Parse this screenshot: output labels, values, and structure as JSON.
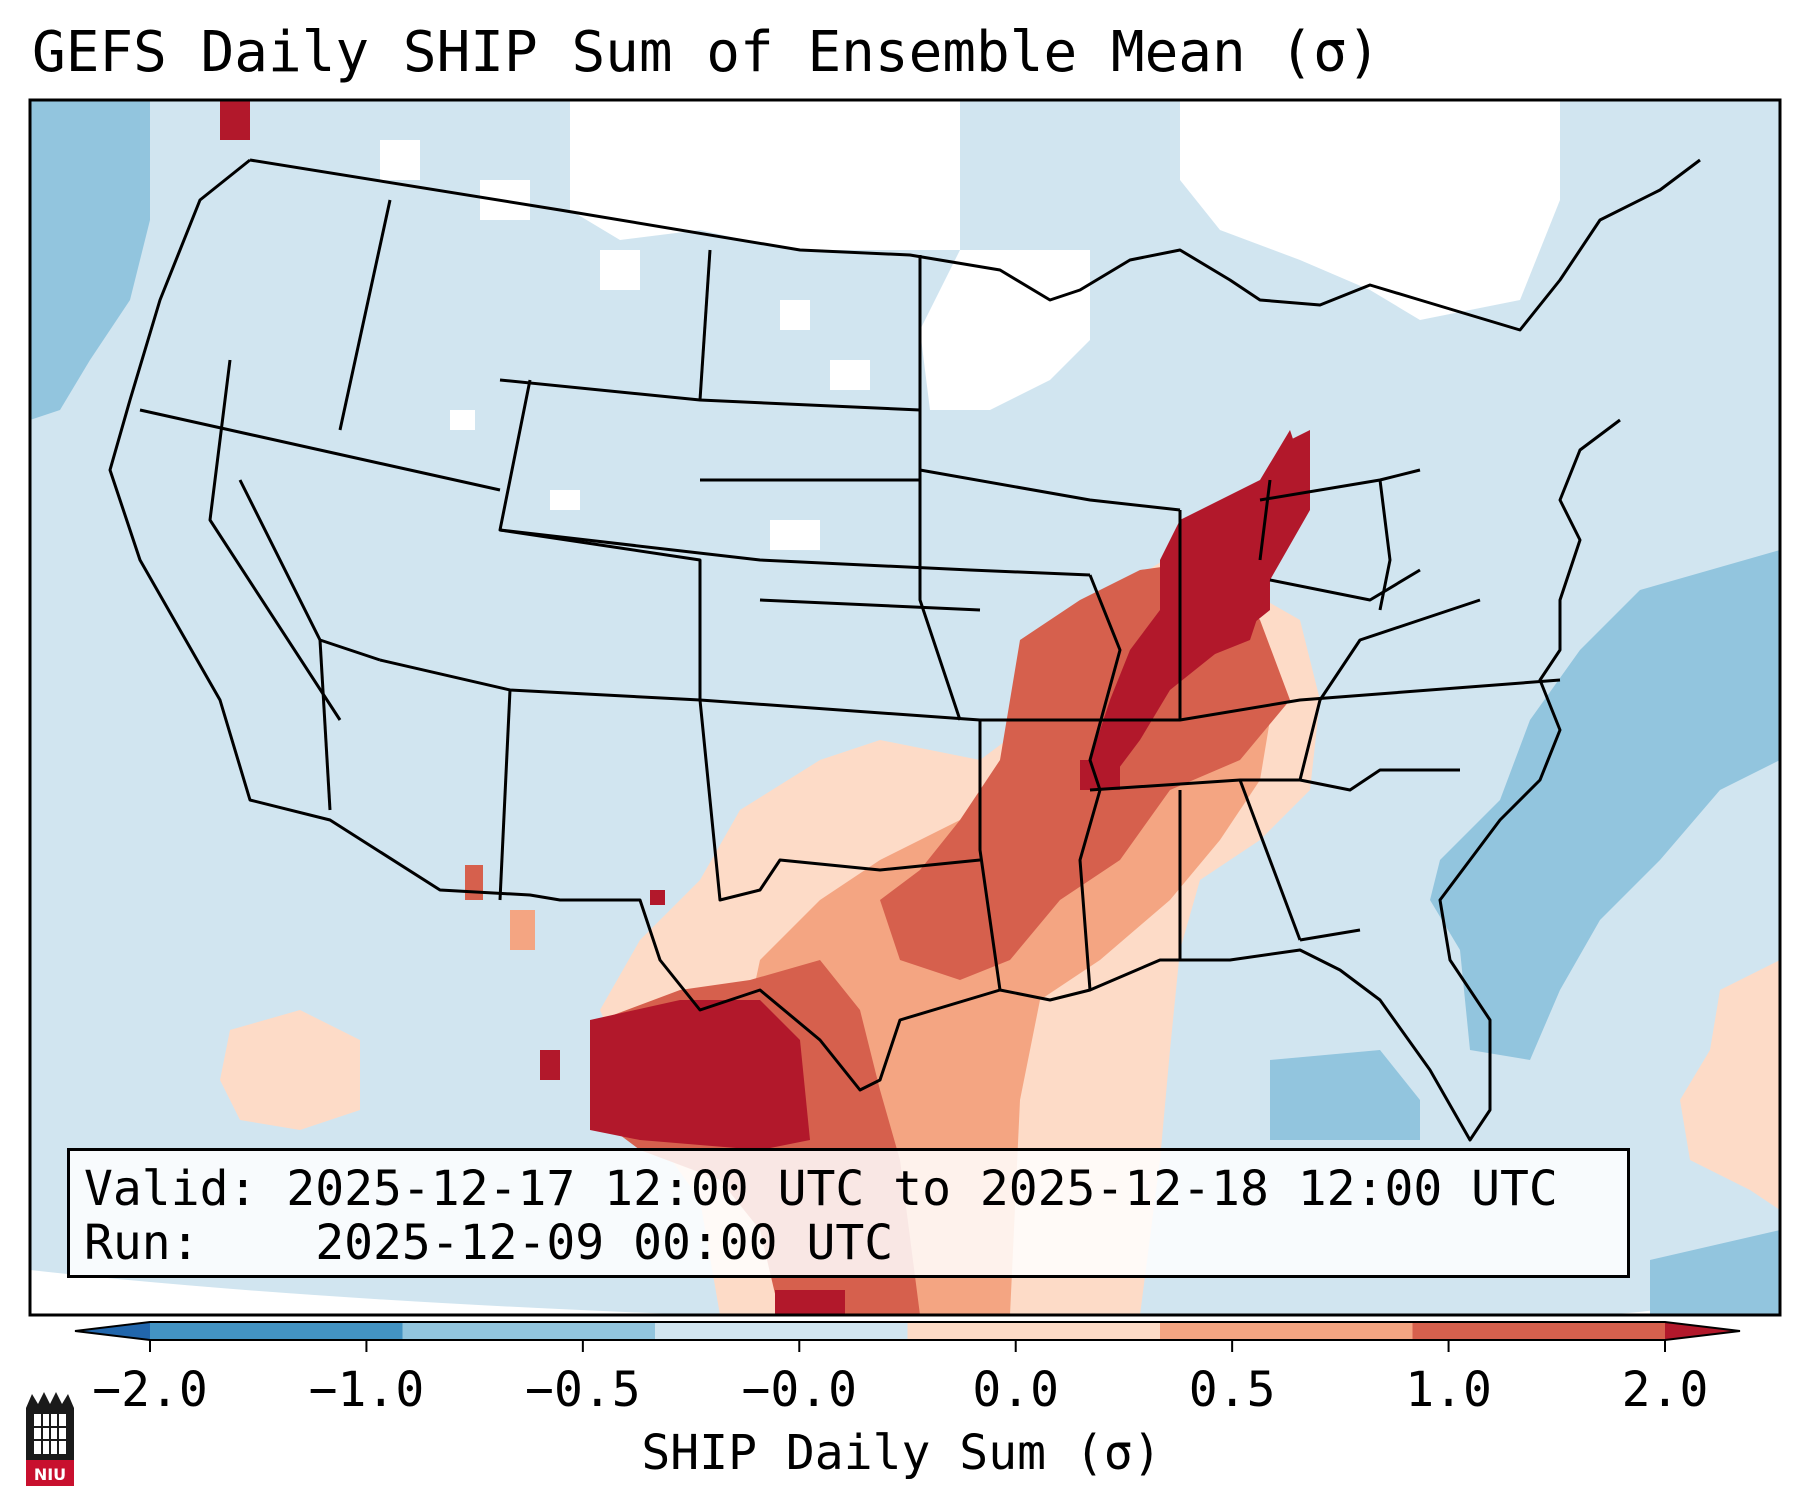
{
  "title": "GEFS Daily SHIP Sum of Ensemble Mean (σ)",
  "info": {
    "valid_label": "Valid:",
    "valid_value": "2025-12-17 12:00 UTC to 2025-12-18 12:00 UTC",
    "run_label": "Run:",
    "run_value": "2025-12-09 00:00 UTC"
  },
  "colorbar": {
    "label": "SHIP Daily Sum (σ)",
    "ticks": [
      "−2.0",
      "−1.0",
      "−0.5",
      "−0.0",
      "0.0",
      "0.5",
      "1.0",
      "2.0"
    ],
    "colors": [
      "#2166ac",
      "#4393c3",
      "#92c5de",
      "#d1e5f0",
      "#fddbc7",
      "#f4a582",
      "#d6604d",
      "#b2182b"
    ]
  },
  "logo": {
    "text": "NIU"
  },
  "palette": {
    "bg": "#d1e5f0",
    "neg1": "#92c5de",
    "neg2": "#4393c3",
    "pos1": "#fddbc7",
    "pos2": "#f4a582",
    "pos3": "#d6604d",
    "pos4": "#b2182b",
    "none": "#ffffff"
  }
}
